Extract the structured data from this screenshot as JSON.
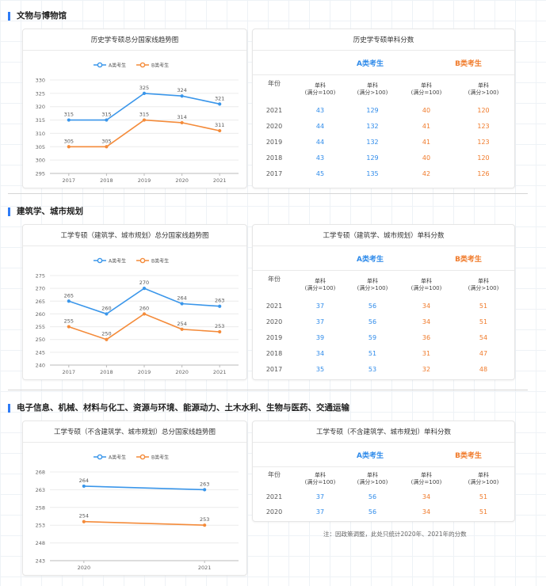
{
  "colors": {
    "a": "#3a96ea",
    "b": "#f48b3a",
    "accent": "#2f7cf6"
  },
  "sections": [
    {
      "heading": "文物与博物馆",
      "chart_title": "历史学专硕总分国家线趋势图",
      "table_title": "历史学专硕单科分数",
      "legend": [
        "A类考生",
        "B类考生"
      ],
      "groups": {
        "a": "A类考生",
        "b": "B类考生"
      },
      "headers": [
        "年份",
        "单科",
        "(满分=100)",
        "单科",
        "(满分>100)",
        "单科",
        "(满分=100)",
        "单科",
        "(满分>100)"
      ],
      "rows": [
        [
          "2021",
          "43",
          "129",
          "40",
          "120"
        ],
        [
          "2020",
          "44",
          "132",
          "41",
          "123"
        ],
        [
          "2019",
          "44",
          "132",
          "41",
          "123"
        ],
        [
          "2018",
          "43",
          "129",
          "40",
          "120"
        ],
        [
          "2017",
          "45",
          "135",
          "42",
          "126"
        ]
      ]
    },
    {
      "heading": "建筑学、城市规划",
      "chart_title": "工学专硕（建筑学、城市规划）总分国家线趋势图",
      "table_title": "工学专硕（建筑学、城市规划）单科分数",
      "legend": [
        "A类考生",
        "B类考生"
      ],
      "groups": {
        "a": "A类考生",
        "b": "B类考生"
      },
      "headers": [
        "年份",
        "单科",
        "(满分=100)",
        "单科",
        "(满分>100)",
        "单科",
        "(满分=100)",
        "单科",
        "(满分>100)"
      ],
      "rows": [
        [
          "2021",
          "37",
          "56",
          "34",
          "51"
        ],
        [
          "2020",
          "37",
          "56",
          "34",
          "51"
        ],
        [
          "2019",
          "39",
          "59",
          "36",
          "54"
        ],
        [
          "2018",
          "34",
          "51",
          "31",
          "47"
        ],
        [
          "2017",
          "35",
          "53",
          "32",
          "48"
        ]
      ]
    },
    {
      "heading": "电子信息、机械、材料与化工、资源与环境、能源动力、土木水利、生物与医药、交通运输",
      "chart_title": "工学专硕（不含建筑学、城市规划）总分国家线趋势图",
      "table_title": "工学专硕（不含建筑学、城市规划）单科分数",
      "legend": [
        "A类考生",
        "B类考生"
      ],
      "groups": {
        "a": "A类考生",
        "b": "B类考生"
      },
      "headers": [
        "年份",
        "单科",
        "(满分=100)",
        "单科",
        "(满分>100)",
        "单科",
        "(满分=100)",
        "单科",
        "(满分>100)"
      ],
      "rows": [
        [
          "2021",
          "37",
          "56",
          "34",
          "51"
        ],
        [
          "2020",
          "37",
          "56",
          "34",
          "51"
        ]
      ],
      "note": "注：因政策调整，此处只统计2020年、2021年的分数"
    }
  ],
  "chart_data": [
    {
      "type": "line",
      "title": "历史学专硕总分国家线趋势图",
      "x": [
        "2017",
        "2018",
        "2019",
        "2020",
        "2021"
      ],
      "ylim": [
        295,
        330
      ],
      "yticks": [
        295,
        300,
        305,
        310,
        315,
        320,
        325,
        330
      ],
      "grid": true,
      "legend_position": "top",
      "series": [
        {
          "name": "A类考生",
          "values": [
            315,
            315,
            325,
            324,
            321
          ]
        },
        {
          "name": "B类考生",
          "values": [
            305,
            305,
            315,
            314,
            311
          ]
        }
      ]
    },
    {
      "type": "line",
      "title": "工学专硕（建筑学、城市规划）总分国家线趋势图",
      "x": [
        "2017",
        "2018",
        "2019",
        "2020",
        "2021"
      ],
      "ylim": [
        240,
        275
      ],
      "yticks": [
        240,
        245,
        250,
        255,
        260,
        265,
        270,
        275
      ],
      "grid": true,
      "legend_position": "top",
      "series": [
        {
          "name": "A类考生",
          "values": [
            265,
            260,
            270,
            264,
            263
          ]
        },
        {
          "name": "B类考生",
          "values": [
            255,
            250,
            260,
            254,
            253
          ]
        }
      ]
    },
    {
      "type": "line",
      "title": "工学专硕（不含建筑学、城市规划）总分国家线趋势图",
      "x": [
        "2020",
        "2021"
      ],
      "ylim": [
        243,
        268
      ],
      "yticks": [
        243,
        248,
        253,
        258,
        263,
        268
      ],
      "grid": true,
      "legend_position": "top",
      "series": [
        {
          "name": "A类考生",
          "values": [
            264,
            263
          ]
        },
        {
          "name": "B类考生",
          "values": [
            254,
            253
          ]
        }
      ]
    }
  ]
}
